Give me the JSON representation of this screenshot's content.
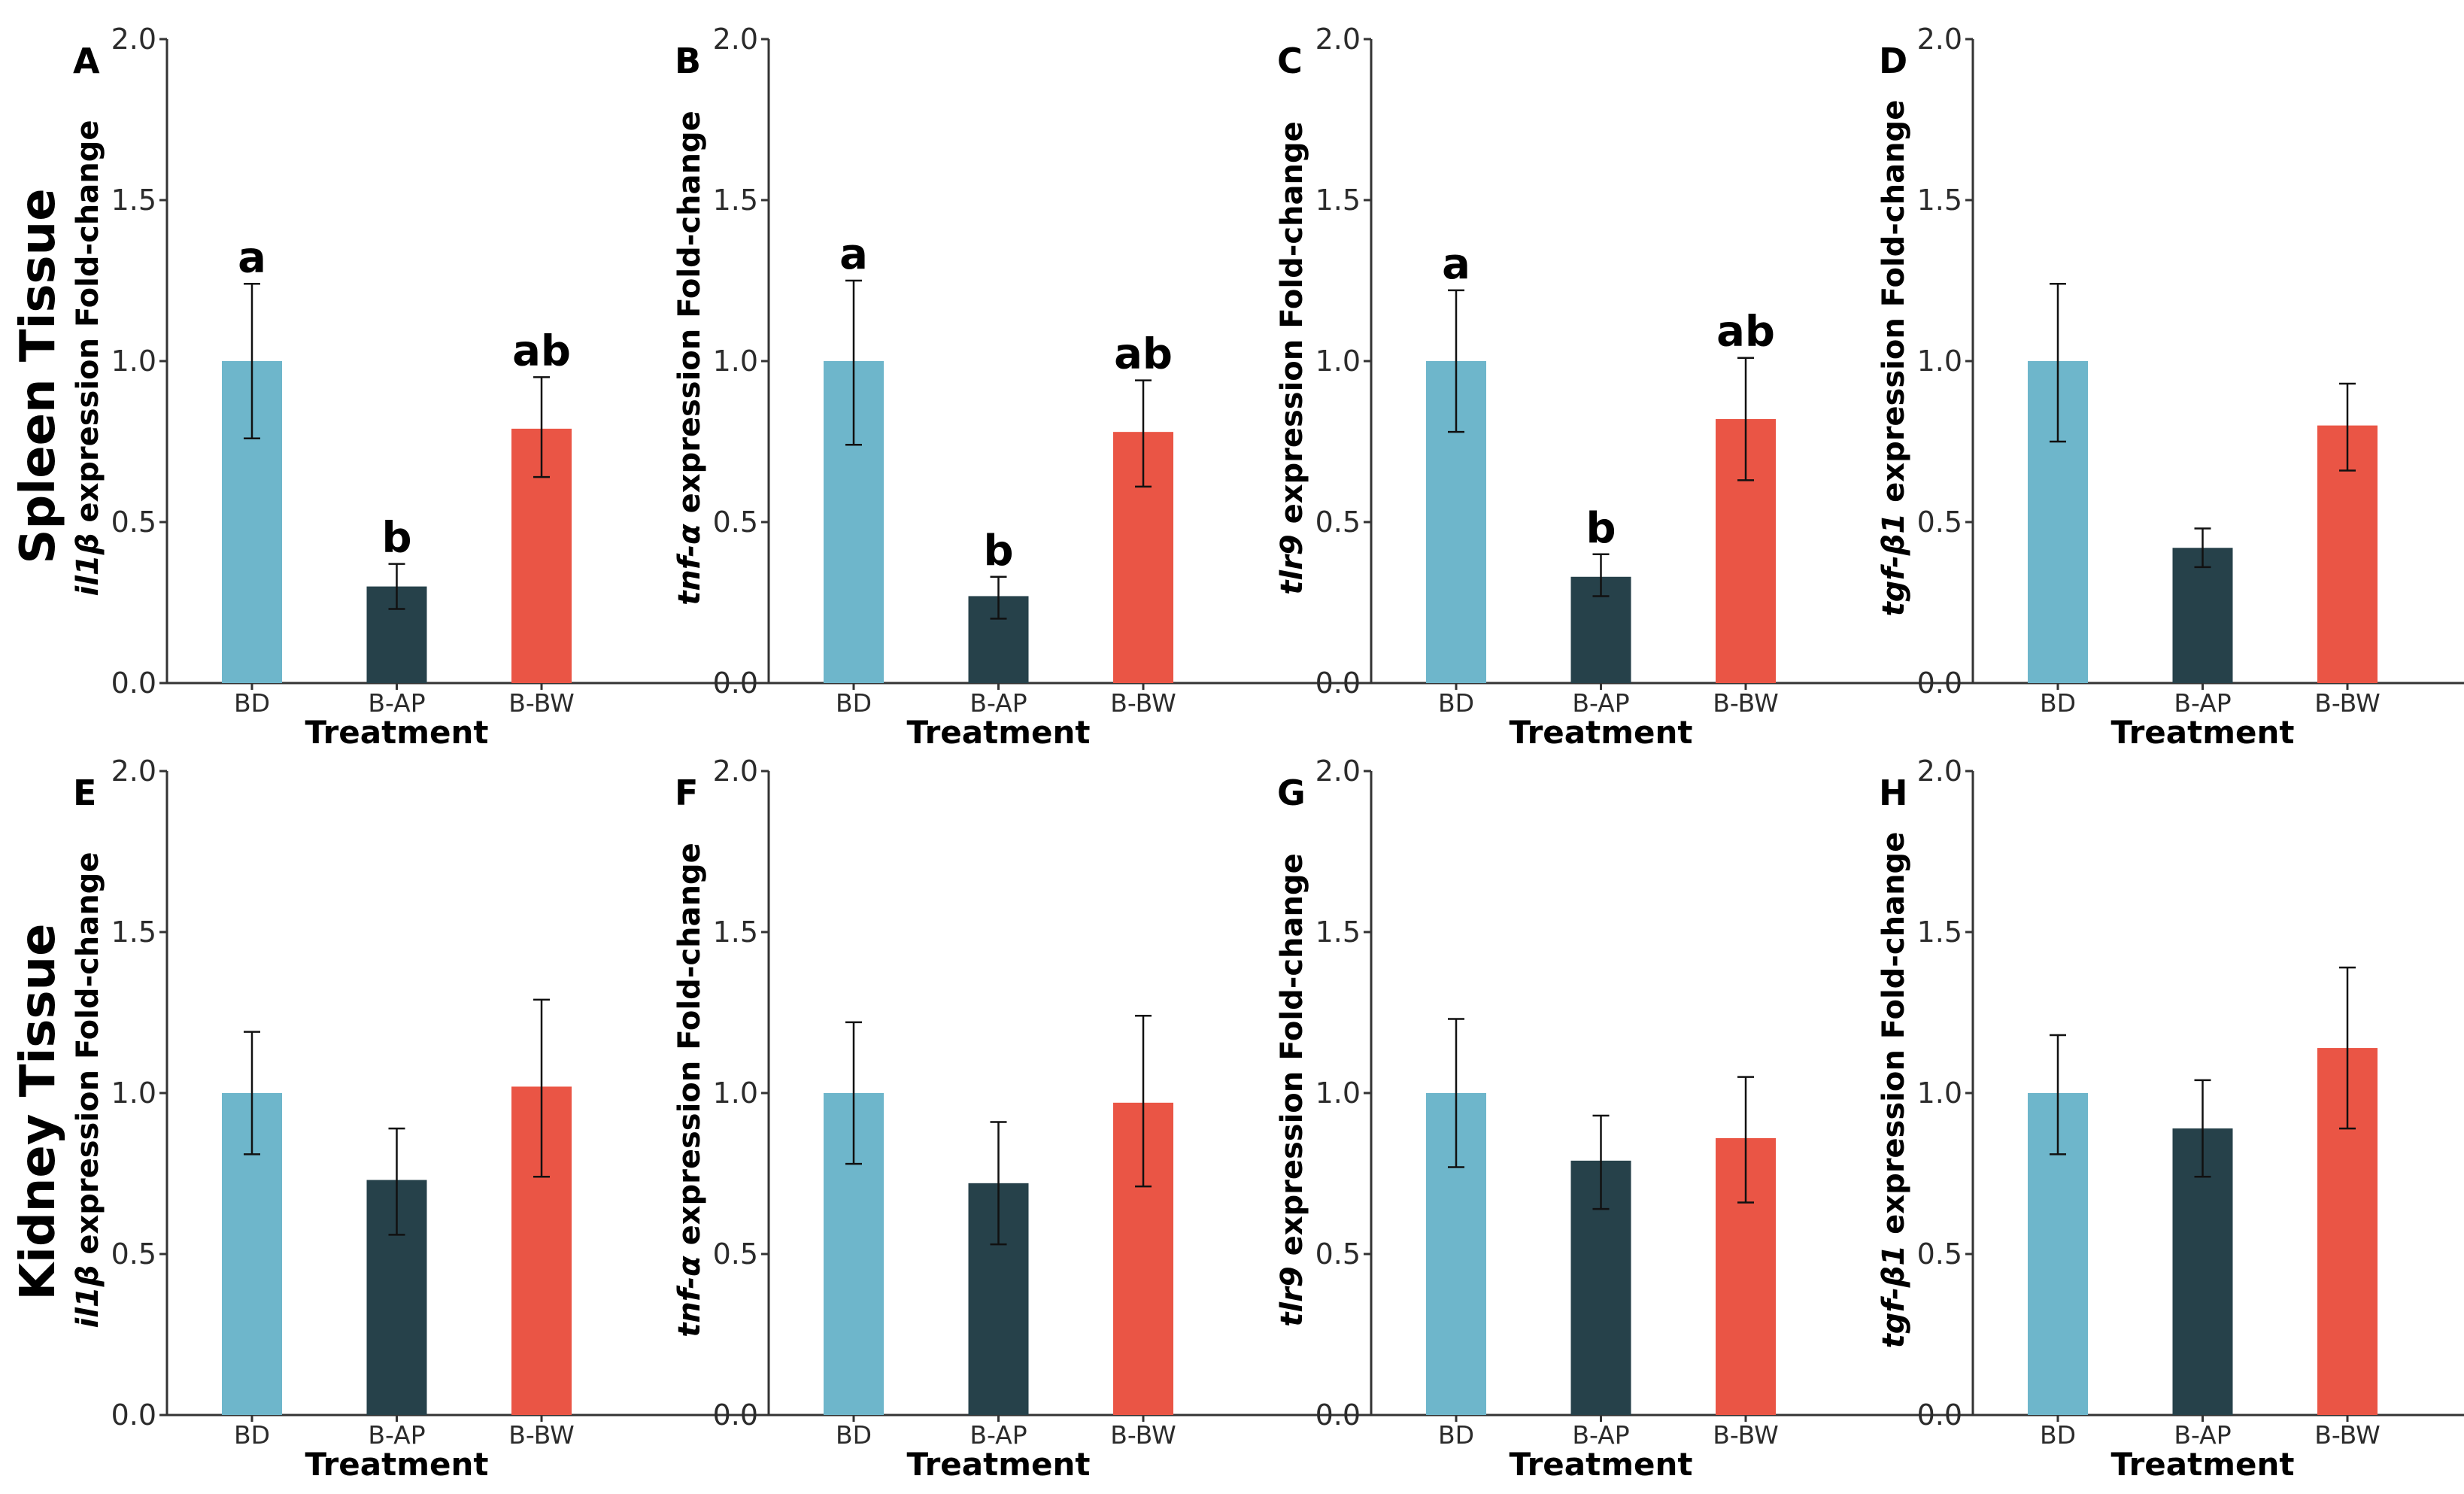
{
  "row_labels": [
    "Spleen Tissue",
    "Kidney Tissue"
  ],
  "colors": {
    "BD": "#6EB6CB",
    "B-AP": "#26414A",
    "B-BW": "#EA5545"
  },
  "chart_data": [
    {
      "panel": "A",
      "type": "bar",
      "gene": "il1β",
      "ylabel_rest": " expression Fold-change",
      "xlabel": "Treatment",
      "categories": [
        "BD",
        "B-AP",
        "B-BW"
      ],
      "values": [
        1.0,
        0.3,
        0.79
      ],
      "err_low": [
        0.76,
        0.23,
        0.64
      ],
      "err_high": [
        1.24,
        0.37,
        0.95
      ],
      "labels": [
        "a",
        "b",
        "ab"
      ],
      "ylim": [
        0,
        2.0
      ],
      "yticks": [
        "0.0",
        "0.5",
        "1.0",
        "1.5",
        "2.0"
      ]
    },
    {
      "panel": "B",
      "type": "bar",
      "gene": "tnf-α",
      "ylabel_rest": " expression Fold-change",
      "xlabel": "Treatment",
      "categories": [
        "BD",
        "B-AP",
        "B-BW"
      ],
      "values": [
        1.0,
        0.27,
        0.78
      ],
      "err_low": [
        0.74,
        0.2,
        0.61
      ],
      "err_high": [
        1.25,
        0.33,
        0.94
      ],
      "labels": [
        "a",
        "b",
        "ab"
      ],
      "ylim": [
        0,
        2.0
      ],
      "yticks": [
        "0.0",
        "0.5",
        "1.0",
        "1.5",
        "2.0"
      ]
    },
    {
      "panel": "C",
      "type": "bar",
      "gene": "tlr9",
      "ylabel_rest": " expression Fold-change",
      "xlabel": "Treatment",
      "categories": [
        "BD",
        "B-AP",
        "B-BW"
      ],
      "values": [
        1.0,
        0.33,
        0.82
      ],
      "err_low": [
        0.78,
        0.27,
        0.63
      ],
      "err_high": [
        1.22,
        0.4,
        1.01
      ],
      "labels": [
        "a",
        "b",
        "ab"
      ],
      "ylim": [
        0,
        2.0
      ],
      "yticks": [
        "0.0",
        "0.5",
        "1.0",
        "1.5",
        "2.0"
      ]
    },
    {
      "panel": "D",
      "type": "bar",
      "gene": "tgf-β1",
      "ylabel_rest": " expression Fold-change",
      "xlabel": "Treatment",
      "categories": [
        "BD",
        "B-AP",
        "B-BW"
      ],
      "values": [
        1.0,
        0.42,
        0.8
      ],
      "err_low": [
        0.75,
        0.36,
        0.66
      ],
      "err_high": [
        1.24,
        0.48,
        0.93
      ],
      "labels": [
        "",
        "",
        ""
      ],
      "ylim": [
        0,
        2.0
      ],
      "yticks": [
        "0.0",
        "0.5",
        "1.0",
        "1.5",
        "2.0"
      ]
    },
    {
      "panel": "E",
      "type": "bar",
      "gene": "il1β",
      "ylabel_rest": " expression Fold-change",
      "xlabel": "Treatment",
      "categories": [
        "BD",
        "B-AP",
        "B-BW"
      ],
      "values": [
        1.0,
        0.73,
        1.02
      ],
      "err_low": [
        0.81,
        0.56,
        0.74
      ],
      "err_high": [
        1.19,
        0.89,
        1.29
      ],
      "labels": [
        "",
        "",
        ""
      ],
      "ylim": [
        0,
        2.0
      ],
      "yticks": [
        "0.0",
        "0.5",
        "1.0",
        "1.5",
        "2.0"
      ]
    },
    {
      "panel": "F",
      "type": "bar",
      "gene": "tnf-α",
      "ylabel_rest": " expression Fold-change",
      "xlabel": "Treatment",
      "categories": [
        "BD",
        "B-AP",
        "B-BW"
      ],
      "values": [
        1.0,
        0.72,
        0.97
      ],
      "err_low": [
        0.78,
        0.53,
        0.71
      ],
      "err_high": [
        1.22,
        0.91,
        1.24
      ],
      "labels": [
        "",
        "",
        ""
      ],
      "ylim": [
        0,
        2.0
      ],
      "yticks": [
        "0.0",
        "0.5",
        "1.0",
        "1.5",
        "2.0"
      ]
    },
    {
      "panel": "G",
      "type": "bar",
      "gene": "tlr9",
      "ylabel_rest": " expression Fold-change",
      "xlabel": "Treatment",
      "categories": [
        "BD",
        "B-AP",
        "B-BW"
      ],
      "values": [
        1.0,
        0.79,
        0.86
      ],
      "err_low": [
        0.77,
        0.64,
        0.66
      ],
      "err_high": [
        1.23,
        0.93,
        1.05
      ],
      "labels": [
        "",
        "",
        ""
      ],
      "ylim": [
        0,
        2.0
      ],
      "yticks": [
        "0.0",
        "0.5",
        "1.0",
        "1.5",
        "2.0"
      ]
    },
    {
      "panel": "H",
      "type": "bar",
      "gene": "tgf-β1",
      "ylabel_rest": " expression Fold-change",
      "xlabel": "Treatment",
      "categories": [
        "BD",
        "B-AP",
        "B-BW"
      ],
      "values": [
        1.0,
        0.89,
        1.14
      ],
      "err_low": [
        0.81,
        0.74,
        0.89
      ],
      "err_high": [
        1.18,
        1.04,
        1.39
      ],
      "labels": [
        "",
        "",
        ""
      ],
      "ylim": [
        0,
        2.0
      ],
      "yticks": [
        "0.0",
        "0.5",
        "1.0",
        "1.5",
        "2.0"
      ]
    }
  ]
}
